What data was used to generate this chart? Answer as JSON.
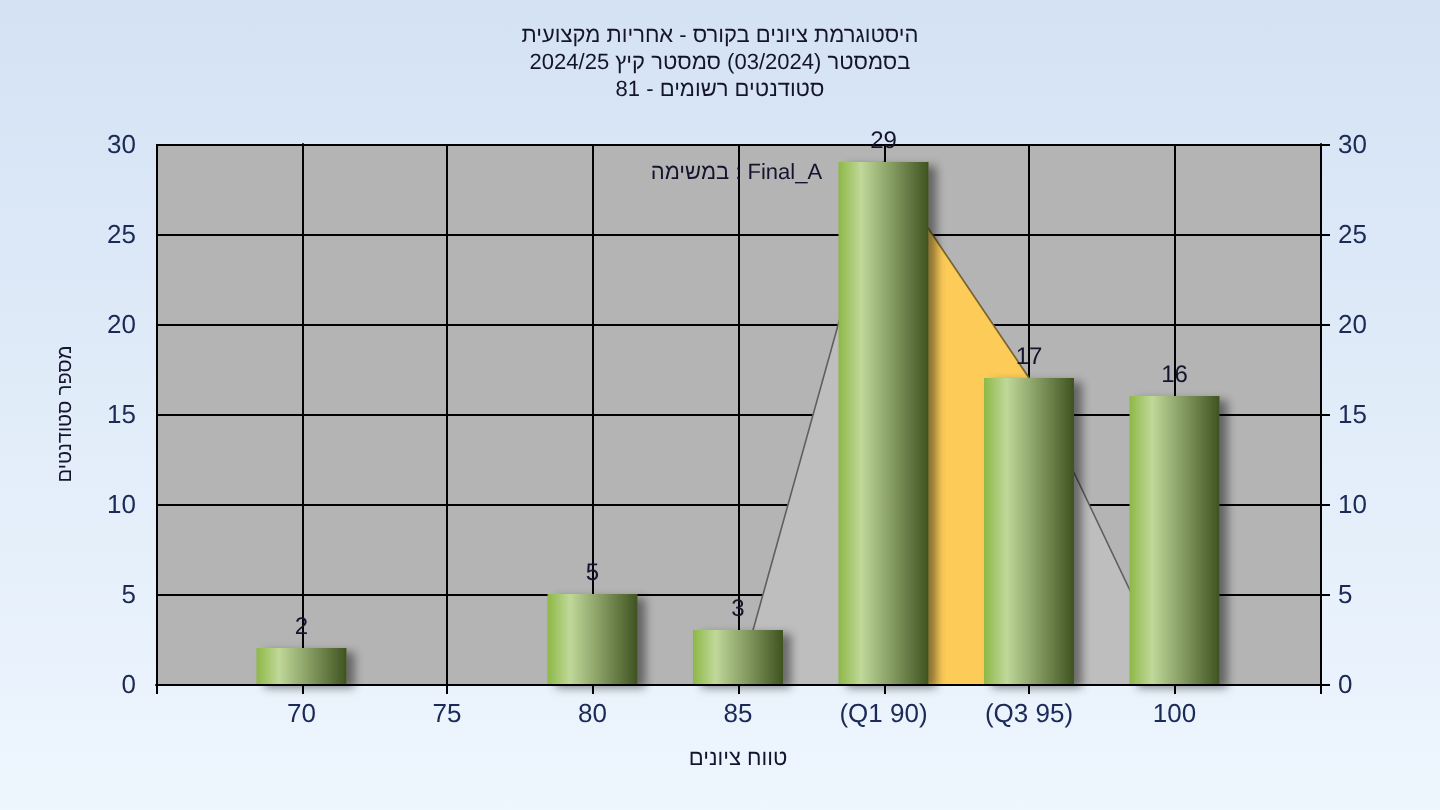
{
  "chart_data": {
    "type": "bar",
    "title": "היסטוגרמת ציונים בקורס - אחריות מקצועית",
    "subtitle": "בסמסטר (03/2024) סמסטר קיץ 2024/25\nסטודנטים רשומים - 81",
    "xlabel": "טווח ציונים",
    "ylabel": "מספר סטודנטים",
    "annotations": [
      "במשימה : Final_A"
    ],
    "categories": [
      "70",
      "75",
      "80",
      "85",
      "(Q1 90)",
      "(Q3 95)",
      "100"
    ],
    "series": [
      {
        "type": "area",
        "color": "#bebebe",
        "values": [
          null,
          null,
          null,
          0,
          29,
          17,
          0
        ]
      },
      {
        "type": "area",
        "color": "#fccb58",
        "values": [
          null,
          null,
          null,
          null,
          29,
          17,
          null
        ]
      },
      {
        "color": "#8db846",
        "values": [
          2,
          0,
          5,
          3,
          29,
          17,
          16
        ],
        "value_labels": [
          "2",
          null,
          "5",
          "3",
          "29",
          "17",
          "16"
        ]
      }
    ],
    "ylim": [
      0,
      30
    ],
    "yticks": [
      0,
      5,
      10,
      15,
      20,
      25,
      30
    ],
    "y2lim": [
      0,
      30
    ],
    "y2ticks": [
      0,
      5,
      10,
      15,
      20,
      25,
      30
    ],
    "grid": true
  }
}
